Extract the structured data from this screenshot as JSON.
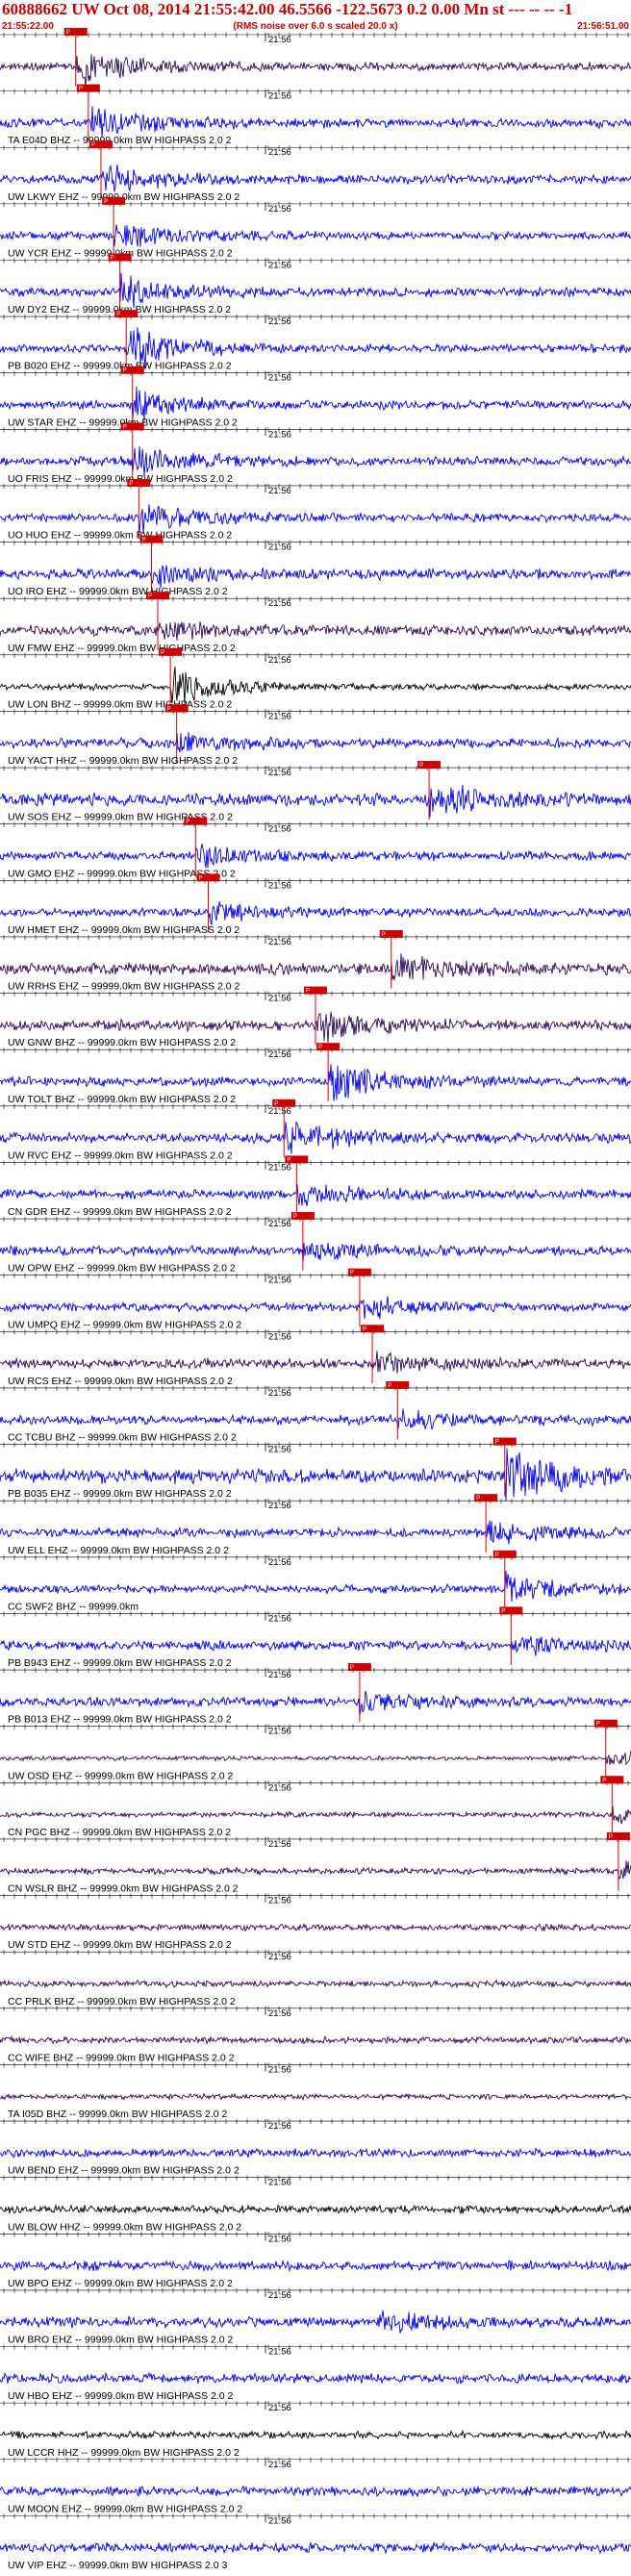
{
  "header": {
    "title": "60888662 UW Oct 08, 2014 21:55:42.00   46.5566 -122.5673  0.2 0.00 Mn st --- -- --   -1",
    "start_time": "21:55:22.00",
    "end_time": "21:56:51.00",
    "note": "(RMS noise over 6.0 s scaled 20.0 x)"
  },
  "chart_data": {
    "type": "line",
    "time_mark_label": "21:56",
    "series_colors": {
      "blue": "#0000ee",
      "purple": "#2a0a55",
      "black": "#000000"
    },
    "traces": [
      {
        "label": "",
        "pick": "P",
        "color": "purple",
        "amp": 0.8,
        "event": [
          0.12,
          4
        ]
      },
      {
        "label": "TA E04D BHZ -- 99999.0km BW  HIGHPASS  2.0  2",
        "pick": "P",
        "color": "blue",
        "amp": 0.9,
        "event": [
          0.14,
          3
        ]
      },
      {
        "label": "UW LKWY EHZ -- 99999.0km BW  HIGHPASS  2.0  2",
        "pick": "P",
        "color": "blue",
        "amp": 0.9,
        "event": [
          0.16,
          3
        ]
      },
      {
        "label": "UW YCR EHZ -- 99999.0km BW  HIGHPASS  2.0  2",
        "pick": "P",
        "color": "blue",
        "amp": 0.8,
        "event": [
          0.18,
          3
        ]
      },
      {
        "label": "UW DY2 EHZ -- 99999.0km BW  HIGHPASS  2.0  2",
        "pick": "P",
        "color": "blue",
        "amp": 0.9,
        "event": [
          0.19,
          3
        ]
      },
      {
        "label": "PB B020 EHZ -- 99999.0km BW  HIGHPASS  2.0  2",
        "pick": "P",
        "color": "blue",
        "amp": 0.8,
        "event": [
          0.2,
          4
        ]
      },
      {
        "label": "UW STAR EHZ -- 99999.0km BW  HIGHPASS  2.0  2",
        "pick": "P",
        "color": "blue",
        "amp": 0.8,
        "event": [
          0.21,
          3
        ]
      },
      {
        "label": "UO FRIS EHZ -- 99999.0km BW  HIGHPASS  2.0  2",
        "pick": "P",
        "color": "blue",
        "amp": 0.9,
        "event": [
          0.21,
          3
        ]
      },
      {
        "label": "UO HUO EHZ -- 99999.0km BW  HIGHPASS  2.0  2",
        "pick": "P",
        "color": "blue",
        "amp": 0.8,
        "event": [
          0.22,
          3
        ]
      },
      {
        "label": "UO IRO EHZ -- 99999.0km BW  HIGHPASS  2.0  2",
        "pick": "P",
        "color": "blue",
        "amp": 1.0,
        "event": [
          0.24,
          2
        ]
      },
      {
        "label": "UW FMW EHZ -- 99999.0km BW  HIGHPASS  2.0  2",
        "pick": "P",
        "color": "purple",
        "amp": 1.0,
        "event": [
          0.25,
          2
        ]
      },
      {
        "label": "UW LON BHZ -- 99999.0km BW  HIGHPASS  2.0  2",
        "pick": "P",
        "color": "black",
        "amp": 0.6,
        "event": [
          0.27,
          4
        ]
      },
      {
        "label": "UW YACT HHZ -- 99999.0km BW  HIGHPASS  2.0  2",
        "pick": "P",
        "color": "blue",
        "amp": 0.9,
        "event": [
          0.28,
          2
        ]
      },
      {
        "label": "UW SOS EHZ -- 99999.0km BW  HIGHPASS  2.0  2",
        "pick": "P",
        "color": "blue",
        "amp": 1.2,
        "event": [
          0.68,
          3
        ]
      },
      {
        "label": "UW GMO EHZ -- 99999.0km BW  HIGHPASS  2.0  2",
        "pick": "P",
        "color": "blue",
        "amp": 0.9,
        "event": [
          0.31,
          2
        ]
      },
      {
        "label": "UW HMET EHZ -- 99999.0km BW  HIGHPASS  2.0  2",
        "pick": "P",
        "color": "blue",
        "amp": 0.8,
        "event": [
          0.33,
          2
        ]
      },
      {
        "label": "UW RRHS EHZ -- 99999.0km BW  HIGHPASS  2.0  2",
        "pick": "P",
        "color": "purple",
        "amp": 1.1,
        "event": [
          0.62,
          3
        ]
      },
      {
        "label": "UW GNW BHZ -- 99999.0km BW  HIGHPASS  2.0  2",
        "pick": "P",
        "color": "purple",
        "amp": 1.0,
        "event": [
          0.5,
          3
        ]
      },
      {
        "label": "UW TOLT BHZ -- 99999.0km BW  HIGHPASS  2.0  2",
        "pick": "P",
        "color": "blue",
        "amp": 0.9,
        "event": [
          0.52,
          4
        ]
      },
      {
        "label": "UW RVC EHZ -- 99999.0km BW  HIGHPASS  2.0  2",
        "pick": "P",
        "color": "blue",
        "amp": 1.0,
        "event": [
          0.45,
          3
        ]
      },
      {
        "label": "CN GDR EHZ -- 99999.0km BW  HIGHPASS  2.0  2",
        "pick": "P",
        "color": "blue",
        "amp": 0.9,
        "event": [
          0.47,
          2
        ]
      },
      {
        "label": "UW OPW EHZ -- 99999.0km BW  HIGHPASS  2.0  2",
        "pick": "P",
        "color": "blue",
        "amp": 0.9,
        "event": [
          0.48,
          2
        ]
      },
      {
        "label": "UW UMPQ EHZ -- 99999.0km BW  HIGHPASS  2.0  2",
        "pick": "P",
        "color": "blue",
        "amp": 0.8,
        "event": [
          0.57,
          2
        ]
      },
      {
        "label": "UW RCS EHZ -- 99999.0km BW  HIGHPASS  2.0  2",
        "pick": "P",
        "color": "purple",
        "amp": 0.9,
        "event": [
          0.59,
          2
        ]
      },
      {
        "label": "CC TCBU BHZ -- 99999.0km BW  HIGHPASS  2.0  2",
        "pick": "P",
        "color": "blue",
        "amp": 0.9,
        "event": [
          0.63,
          2
        ]
      },
      {
        "label": "PB B035 EHZ -- 99999.0km BW  HIGHPASS  2.0  2",
        "pick": "P",
        "color": "blue",
        "amp": 1.4,
        "event": [
          0.8,
          6
        ]
      },
      {
        "label": "UW ELL EHZ -- 99999.0km BW  HIGHPASS  2.0  2",
        "pick": "P",
        "color": "blue",
        "amp": 0.9,
        "event": [
          0.77,
          2
        ]
      },
      {
        "label": "CC SWF2 BHZ -- 99999.0km",
        "pick": "P",
        "color": "blue",
        "amp": 0.8,
        "event": [
          0.8,
          3
        ]
      },
      {
        "label": "PB B943 EHZ -- 99999.0km BW  HIGHPASS  2.0  2",
        "pick": "P",
        "color": "blue",
        "amp": 0.9,
        "event": [
          0.81,
          2
        ]
      },
      {
        "label": "PB B013 EHZ -- 99999.0km BW  HIGHPASS  2.0  2",
        "pick": "P",
        "color": "blue",
        "amp": 0.9,
        "event": [
          0.57,
          2
        ]
      },
      {
        "label": "UW OSD EHZ -- 99999.0km BW  HIGHPASS  2.0  2",
        "pick": "P",
        "color": "purple",
        "amp": 0.4,
        "event": [
          0.96,
          2
        ]
      },
      {
        "label": "CN PGC BHZ -- 99999.0km BW  HIGHPASS  2.0  2",
        "pick": "P",
        "color": "purple",
        "amp": 0.5,
        "event": [
          0.97,
          2
        ]
      },
      {
        "label": "CN WSLR BHZ -- 99999.0km BW  HIGHPASS  2.0  2",
        "pick": "P",
        "color": "purple",
        "amp": 0.6,
        "event": [
          0.98,
          2
        ]
      },
      {
        "label": "UW STD EHZ -- 99999.0km BW  HIGHPASS  2.0  2",
        "pick": "",
        "color": "purple",
        "amp": 0.6,
        "event": null
      },
      {
        "label": "CC PRLK BHZ -- 99999.0km BW  HIGHPASS  2.0  2",
        "pick": "",
        "color": "purple",
        "amp": 0.6,
        "event": null
      },
      {
        "label": "CC WIFE BHZ -- 99999.0km BW  HIGHPASS  2.0  2",
        "pick": "",
        "color": "purple",
        "amp": 0.6,
        "event": null
      },
      {
        "label": "TA I05D BHZ -- 99999.0km BW  HIGHPASS  2.0  2",
        "pick": "",
        "color": "purple",
        "amp": 0.5,
        "event": null
      },
      {
        "label": "UW BEND EHZ -- 99999.0km BW  HIGHPASS  2.0  2",
        "pick": "",
        "color": "blue",
        "amp": 0.8,
        "event": null
      },
      {
        "label": "UW BLOW HHZ -- 99999.0km BW  HIGHPASS  2.0  2",
        "pick": "",
        "color": "black",
        "amp": 0.8,
        "event": null
      },
      {
        "label": "UW BPO EHZ -- 99999.0km BW  HIGHPASS  2.0  2",
        "pick": "",
        "color": "blue",
        "amp": 0.9,
        "event": null
      },
      {
        "label": "UW BRO EHZ -- 99999.0km BW  HIGHPASS  2.0  2",
        "pick": "",
        "color": "blue",
        "amp": 1.0,
        "event": [
          0.6,
          2
        ]
      },
      {
        "label": "UW HBO EHZ -- 99999.0km BW  HIGHPASS  2.0  2",
        "pick": "",
        "color": "blue",
        "amp": 0.9,
        "event": null
      },
      {
        "label": "UW LCCR HHZ -- 99999.0km BW  HIGHPASS  2.0  2",
        "pick": "",
        "color": "black",
        "amp": 0.7,
        "event": null
      },
      {
        "label": "UW MOON EHZ -- 99999.0km BW  HIGHPASS  2.0  2",
        "pick": "",
        "color": "blue",
        "amp": 0.9,
        "event": null
      },
      {
        "label": "UW VIP EHZ -- 99999.0km BW  HIGHPASS  2.0  3",
        "pick": "",
        "color": "blue",
        "amp": 0.9,
        "event": null
      }
    ]
  }
}
